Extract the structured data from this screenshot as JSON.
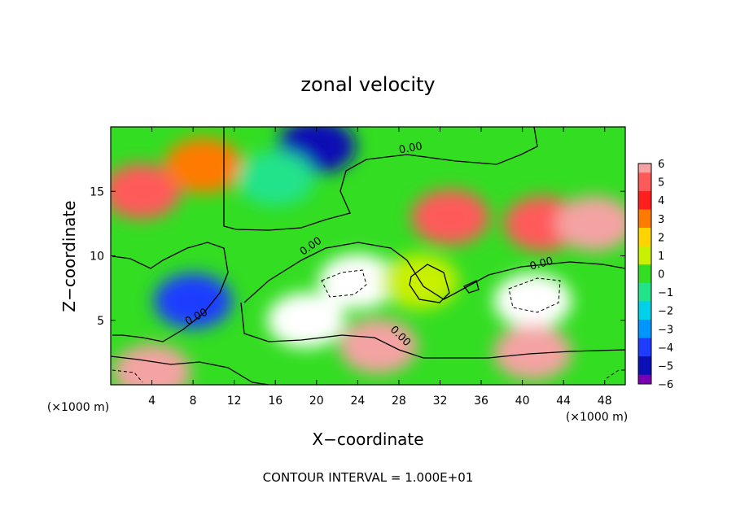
{
  "chart_data": {
    "type": "heatmap",
    "title": "zonal velocity",
    "xlabel": "X−coordinate",
    "ylabel": "Z−coordinate",
    "x_unit_label": "(×1000 m)",
    "z_unit_label": "(×1000 m)",
    "xlim": [
      0,
      50
    ],
    "ylim": [
      0,
      20
    ],
    "xticks": [
      "4",
      "8",
      "12",
      "16",
      "20",
      "24",
      "28",
      "32",
      "36",
      "40",
      "44",
      "48"
    ],
    "xtick_values": [
      4,
      8,
      12,
      16,
      20,
      24,
      28,
      32,
      36,
      40,
      44,
      48
    ],
    "yticks": [
      "5",
      "10",
      "15"
    ],
    "ytick_values": [
      5,
      10,
      15
    ],
    "colorbar": {
      "labels": [
        "6",
        "5",
        "4",
        "3",
        "2",
        "1",
        "0",
        "−1",
        "−2",
        "−3",
        "−4",
        "−5",
        "−6"
      ],
      "values": [
        6,
        5,
        4,
        3,
        2,
        1,
        0,
        -1,
        -2,
        -3,
        -4,
        -5,
        -6
      ],
      "colors": [
        "#f4a3a3",
        "#ff5a5a",
        "#ff1f1f",
        "#ff7a00",
        "#ffd400",
        "#c8f000",
        "#33dd22",
        "#22e38a",
        "#00d0e8",
        "#0096ff",
        "#1f3dff",
        "#0a10b4",
        "#7a00b4"
      ]
    },
    "contour_labels": [
      "0.00",
      "0.00",
      "0.00",
      "0.00",
      "0.00"
    ],
    "contour_interval_text": "CONTOUR INTERVAL = 1.000E+01",
    "features": [
      {
        "x": 3,
        "z": 15,
        "u": 4.5
      },
      {
        "x": 9,
        "z": 17,
        "u": 2.5
      },
      {
        "x": 20,
        "z": 18.5,
        "u": -5.5
      },
      {
        "x": 16,
        "z": 16,
        "u": -1.5
      },
      {
        "x": 24,
        "z": 8,
        "u": -7
      },
      {
        "x": 19,
        "z": 5,
        "u": -7
      },
      {
        "x": 41,
        "z": 6.5,
        "u": -7
      },
      {
        "x": 8,
        "z": 6.5,
        "u": -4.5
      },
      {
        "x": 42,
        "z": 12.5,
        "u": 5
      },
      {
        "x": 47,
        "z": 12.5,
        "u": 6
      },
      {
        "x": 33,
        "z": 13,
        "u": 5
      },
      {
        "x": 26,
        "z": 3,
        "u": 6
      },
      {
        "x": 4,
        "z": 1,
        "u": 6
      },
      {
        "x": 41,
        "z": 2.5,
        "u": 6
      },
      {
        "x": 30,
        "z": 8,
        "u": 1
      }
    ]
  }
}
